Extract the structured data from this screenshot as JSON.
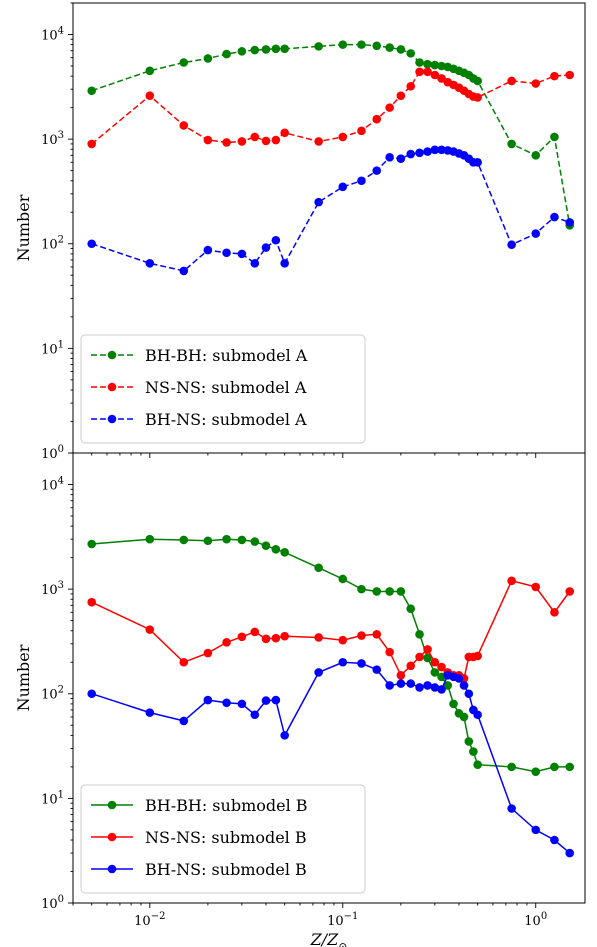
{
  "chart_data": [
    {
      "type": "line",
      "panel": "top",
      "xlabel": "",
      "ylabel": "Number",
      "xscale": "log",
      "yscale": "log",
      "xlim": [
        0.004,
        1.8
      ],
      "ylim": [
        1,
        20000
      ],
      "ytick_labels": [
        "10^0",
        "10^1",
        "10^2",
        "10^3",
        "10^4"
      ],
      "grid": false,
      "legend_position": "lower-left",
      "line_style": "dashed",
      "series": [
        {
          "name": "BH-BH: submodel A",
          "color": "#008000",
          "x": [
            0.005,
            0.01,
            0.015,
            0.02,
            0.025,
            0.03,
            0.035,
            0.04,
            0.045,
            0.05,
            0.075,
            0.1,
            0.125,
            0.15,
            0.175,
            0.2,
            0.225,
            0.25,
            0.275,
            0.3,
            0.325,
            0.35,
            0.375,
            0.4,
            0.425,
            0.45,
            0.475,
            0.5,
            0.75,
            1.0,
            1.25,
            1.5
          ],
          "y": [
            2900,
            4500,
            5400,
            5900,
            6500,
            6900,
            7100,
            7200,
            7300,
            7300,
            7700,
            8000,
            8000,
            7800,
            7500,
            7200,
            6600,
            5400,
            5200,
            5100,
            5000,
            4900,
            4700,
            4500,
            4300,
            4100,
            3800,
            3600,
            900,
            700,
            1050,
            150
          ]
        },
        {
          "name": "NS-NS: submodel A",
          "color": "#ff0000",
          "x": [
            0.005,
            0.01,
            0.015,
            0.02,
            0.025,
            0.03,
            0.035,
            0.04,
            0.045,
            0.05,
            0.075,
            0.1,
            0.125,
            0.15,
            0.175,
            0.2,
            0.225,
            0.25,
            0.275,
            0.3,
            0.325,
            0.35,
            0.375,
            0.4,
            0.425,
            0.45,
            0.475,
            0.5,
            0.75,
            1.0,
            1.25,
            1.5
          ],
          "y": [
            900,
            2600,
            1350,
            980,
            930,
            950,
            1050,
            960,
            980,
            1150,
            950,
            1050,
            1200,
            1550,
            2000,
            2600,
            3200,
            4400,
            4400,
            4100,
            3800,
            3500,
            3300,
            3100,
            2900,
            2700,
            2550,
            2500,
            3600,
            3400,
            4000,
            4100
          ]
        },
        {
          "name": "BH-NS: submodel A",
          "color": "#0000ff",
          "x": [
            0.005,
            0.01,
            0.015,
            0.02,
            0.025,
            0.03,
            0.035,
            0.04,
            0.045,
            0.05,
            0.075,
            0.1,
            0.125,
            0.15,
            0.175,
            0.2,
            0.225,
            0.25,
            0.275,
            0.3,
            0.325,
            0.35,
            0.375,
            0.4,
            0.425,
            0.45,
            0.475,
            0.5,
            0.75,
            1.0,
            1.25,
            1.5
          ],
          "y": [
            100,
            65,
            55,
            87,
            82,
            80,
            65,
            92,
            108,
            65,
            250,
            350,
            400,
            500,
            670,
            650,
            720,
            740,
            760,
            790,
            790,
            780,
            760,
            730,
            700,
            650,
            600,
            600,
            98,
            125,
            180,
            160
          ]
        }
      ]
    },
    {
      "type": "line",
      "panel": "bottom",
      "xlabel": "Z/Z⊙",
      "ylabel": "Number",
      "xscale": "log",
      "yscale": "log",
      "xlim": [
        0.004,
        1.8
      ],
      "ylim": [
        1,
        20000
      ],
      "xtick_labels": [
        "10^-2",
        "10^-1",
        "10^0"
      ],
      "ytick_labels": [
        "10^0",
        "10^1",
        "10^2",
        "10^3",
        "10^4"
      ],
      "grid": false,
      "legend_position": "lower-left",
      "line_style": "solid",
      "series": [
        {
          "name": "BH-BH: submodel B",
          "color": "#008000",
          "x": [
            0.005,
            0.01,
            0.015,
            0.02,
            0.025,
            0.03,
            0.035,
            0.04,
            0.045,
            0.05,
            0.075,
            0.1,
            0.125,
            0.15,
            0.175,
            0.2,
            0.225,
            0.25,
            0.275,
            0.3,
            0.325,
            0.35,
            0.375,
            0.4,
            0.425,
            0.45,
            0.475,
            0.5,
            0.75,
            1.0,
            1.25,
            1.5
          ],
          "y": [
            2700,
            3000,
            2950,
            2900,
            3000,
            2950,
            2850,
            2600,
            2400,
            2250,
            1600,
            1250,
            1000,
            950,
            950,
            950,
            650,
            370,
            220,
            160,
            145,
            120,
            80,
            65,
            60,
            35,
            28,
            21,
            20,
            18,
            20,
            20
          ]
        },
        {
          "name": "NS-NS: submodel B",
          "color": "#ff0000",
          "x": [
            0.005,
            0.01,
            0.015,
            0.02,
            0.025,
            0.03,
            0.035,
            0.04,
            0.045,
            0.05,
            0.075,
            0.1,
            0.125,
            0.15,
            0.175,
            0.2,
            0.225,
            0.25,
            0.275,
            0.3,
            0.325,
            0.35,
            0.375,
            0.4,
            0.425,
            0.45,
            0.475,
            0.5,
            0.75,
            1.0,
            1.25,
            1.5
          ],
          "y": [
            750,
            410,
            200,
            245,
            310,
            350,
            390,
            335,
            340,
            355,
            345,
            325,
            360,
            370,
            250,
            150,
            185,
            225,
            265,
            200,
            180,
            160,
            150,
            150,
            140,
            225,
            225,
            230,
            1200,
            1050,
            600,
            950
          ]
        },
        {
          "name": "BH-NS: submodel B",
          "color": "#0000ff",
          "x": [
            0.005,
            0.01,
            0.015,
            0.02,
            0.025,
            0.03,
            0.035,
            0.04,
            0.045,
            0.05,
            0.075,
            0.1,
            0.125,
            0.15,
            0.175,
            0.2,
            0.225,
            0.25,
            0.275,
            0.3,
            0.325,
            0.35,
            0.375,
            0.4,
            0.425,
            0.45,
            0.475,
            0.5,
            0.75,
            1.0,
            1.25,
            1.5
          ],
          "y": [
            100,
            66,
            55,
            87,
            82,
            80,
            63,
            86,
            87,
            40,
            160,
            200,
            195,
            170,
            120,
            125,
            125,
            115,
            120,
            115,
            110,
            150,
            145,
            140,
            120,
            100,
            70,
            63,
            8,
            5,
            4,
            3
          ]
        }
      ]
    }
  ]
}
